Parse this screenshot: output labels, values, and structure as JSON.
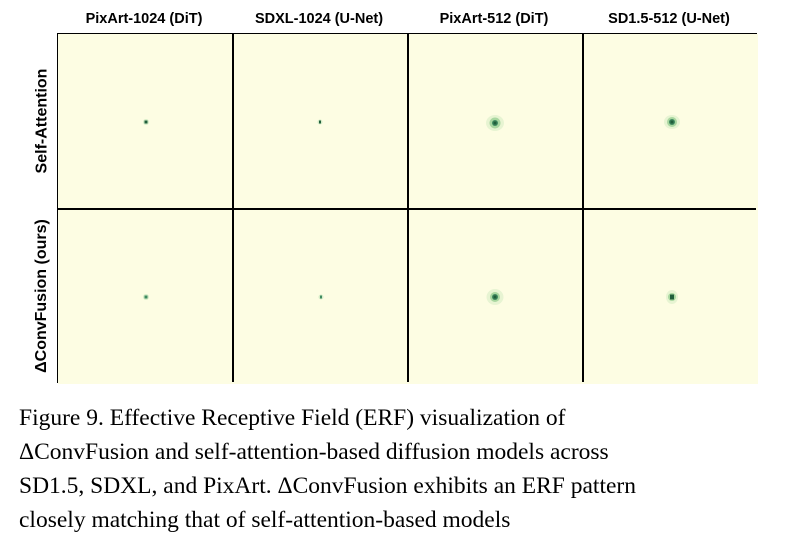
{
  "figure": {
    "columns": [
      "PixArt-1024 (DiT)",
      "SDXL-1024 (U-Net)",
      "PixArt-512 (DiT)",
      "SD1.5-512 (U-Net)"
    ],
    "rows": [
      "Self-Attention",
      "ΔConvFusion (ours)"
    ],
    "colors": {
      "background": "#fdfde3",
      "center": "#1f5e3a",
      "halo": "#a9d7a0"
    }
  },
  "caption": {
    "lines": [
      "Figure 9.  Effective Receptive Field (ERF) visualization of",
      "ΔConvFusion and self-attention-based diffusion models across",
      "SD1.5, SDXL, and PixArt. ΔConvFusion exhibits an ERF pattern",
      "closely matching that of self-attention-based models"
    ]
  }
}
